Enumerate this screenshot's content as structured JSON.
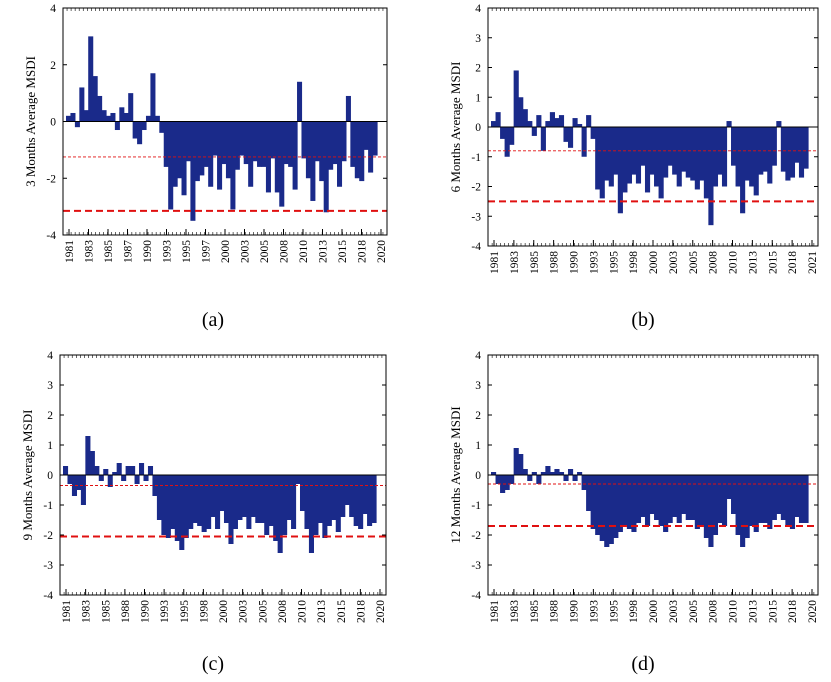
{
  "colors": {
    "bars": "#1a2a8a",
    "threshold": "#e01010",
    "axis": "#000000",
    "background": "#ffffff"
  },
  "chart_data": [
    {
      "type": "bar",
      "panel_label": "(a)",
      "ylabel": "3 Months Average MSDI",
      "ylim": [
        -4,
        4
      ],
      "yticks": [
        "4",
        "2",
        "0",
        "-2",
        "-4"
      ],
      "xlim": [
        1981,
        2021
      ],
      "xticks": [
        "1981",
        "1983",
        "1985",
        "1987",
        "1990",
        "1993",
        "1995",
        "1997",
        "2000",
        "2003",
        "2005",
        "2008",
        "2010",
        "2013",
        "2015",
        "2018",
        "2020"
      ],
      "threshold_lines": [
        {
          "value": -1.25,
          "style": "thin"
        },
        {
          "value": -3.15,
          "style": "thick"
        }
      ],
      "values": [
        0.2,
        0.3,
        -0.2,
        1.2,
        0.4,
        3.0,
        1.6,
        0.9,
        0.4,
        0.2,
        0.3,
        -0.3,
        0.5,
        0.3,
        1.0,
        -0.6,
        -0.8,
        -0.3,
        0.2,
        1.7,
        0.2,
        -0.4,
        -1.6,
        -3.1,
        -2.3,
        -2.0,
        -2.6,
        -1.4,
        -3.5,
        -2.1,
        -1.9,
        -1.6,
        -2.3,
        -1.2,
        -2.4,
        -1.5,
        -2.0,
        -3.1,
        -1.7,
        -1.2,
        -1.5,
        -2.3,
        -1.4,
        -1.6,
        -1.6,
        -2.5,
        -1.3,
        -2.5,
        -3.0,
        -1.5,
        -1.6,
        -2.4,
        1.4,
        -1.3,
        -2.0,
        -2.8,
        -1.4,
        -2.1,
        -3.2,
        -1.7,
        -1.5,
        -2.3,
        -1.4,
        0.9,
        -1.6,
        -2.0,
        -2.1,
        -1.0,
        -1.8,
        -1.2
      ]
    },
    {
      "type": "bar",
      "panel_label": "(b)",
      "ylabel": "6 Months Average MSDI",
      "ylim": [
        -4,
        4
      ],
      "yticks": [
        "4",
        "3",
        "2",
        "1",
        "0",
        "-1",
        "-2",
        "-3",
        "-4"
      ],
      "xlim": [
        1981,
        2021
      ],
      "xticks": [
        "1981",
        "1983",
        "1985",
        "1988",
        "1990",
        "1993",
        "1995",
        "1998",
        "2000",
        "2003",
        "2005",
        "2008",
        "2010",
        "2013",
        "2015",
        "2018",
        "2021"
      ],
      "threshold_lines": [
        {
          "value": -0.8,
          "style": "thin"
        },
        {
          "value": -2.5,
          "style": "thick"
        }
      ],
      "values": [
        0.2,
        0.5,
        -0.4,
        -1.0,
        -0.6,
        1.9,
        1.0,
        0.6,
        0.2,
        -0.3,
        0.4,
        -0.8,
        0.2,
        0.5,
        0.3,
        0.4,
        -0.5,
        -0.7,
        0.3,
        0.1,
        -1.0,
        0.4,
        -0.4,
        -2.1,
        -2.4,
        -1.8,
        -2.0,
        -1.6,
        -2.9,
        -2.2,
        -1.9,
        -1.6,
        -1.9,
        -1.3,
        -2.2,
        -1.6,
        -2.0,
        -2.4,
        -1.7,
        -1.3,
        -1.6,
        -2.0,
        -1.5,
        -1.7,
        -1.8,
        -2.1,
        -1.8,
        -2.4,
        -3.3,
        -2.0,
        -1.6,
        -2.0,
        0.2,
        -1.3,
        -2.0,
        -2.9,
        -1.8,
        -2.0,
        -2.3,
        -1.6,
        -1.5,
        -1.9,
        -1.3,
        0.2,
        -1.5,
        -1.8,
        -1.7,
        -1.2,
        -1.7,
        -1.4
      ]
    },
    {
      "type": "bar",
      "panel_label": "(c)",
      "ylabel": "9 Months Average MSDI",
      "ylim": [
        -4,
        4
      ],
      "yticks": [
        "4",
        "3",
        "2",
        "1",
        "0",
        "-1",
        "-2",
        "-3",
        "-4"
      ],
      "xlim": [
        1981,
        2021
      ],
      "xticks": [
        "1981",
        "1983",
        "1985",
        "1988",
        "1990",
        "1993",
        "1995",
        "1998",
        "2000",
        "2003",
        "2005",
        "2008",
        "2010",
        "2013",
        "2015",
        "2018",
        "2020"
      ],
      "threshold_lines": [
        {
          "value": -0.35,
          "style": "thin"
        },
        {
          "value": -2.05,
          "style": "thick"
        }
      ],
      "values": [
        0.3,
        -0.3,
        -0.7,
        -0.5,
        -1.0,
        1.3,
        0.8,
        0.3,
        -0.2,
        0.2,
        -0.4,
        0.1,
        0.4,
        -0.2,
        0.3,
        0.3,
        -0.3,
        0.4,
        -0.2,
        0.3,
        -0.7,
        -1.5,
        -2.0,
        -2.1,
        -1.8,
        -2.2,
        -2.5,
        -2.1,
        -1.8,
        -1.6,
        -1.7,
        -1.9,
        -1.8,
        -1.4,
        -1.8,
        -1.2,
        -1.6,
        -2.3,
        -1.8,
        -1.5,
        -1.4,
        -1.8,
        -1.4,
        -1.6,
        -1.6,
        -2.0,
        -1.7,
        -2.2,
        -2.6,
        -2.0,
        -1.5,
        -1.8,
        -0.3,
        -1.2,
        -1.8,
        -2.6,
        -2.0,
        -1.6,
        -2.1,
        -1.7,
        -1.5,
        -1.9,
        -1.4,
        -1.0,
        -1.4,
        -1.7,
        -1.8,
        -1.3,
        -1.7,
        -1.6
      ]
    },
    {
      "type": "bar",
      "panel_label": "(d)",
      "ylabel": "12 Months Average MSDI",
      "ylim": [
        -4,
        4
      ],
      "yticks": [
        "4",
        "3",
        "2",
        "1",
        "0",
        "-1",
        "-2",
        "-3",
        "-4"
      ],
      "xlim": [
        1981,
        2021
      ],
      "xticks": [
        "1981",
        "1983",
        "1985",
        "1988",
        "1990",
        "1993",
        "1995",
        "1998",
        "2000",
        "2003",
        "2005",
        "2008",
        "2010",
        "2013",
        "2015",
        "2018",
        "2020"
      ],
      "threshold_lines": [
        {
          "value": -0.3,
          "style": "thin"
        },
        {
          "value": -1.7,
          "style": "thick"
        }
      ],
      "values": [
        0.1,
        -0.3,
        -0.6,
        -0.5,
        -0.3,
        0.9,
        0.7,
        0.2,
        -0.2,
        0.1,
        -0.3,
        0.1,
        0.3,
        0.1,
        0.2,
        0.1,
        -0.2,
        0.2,
        -0.2,
        0.1,
        -0.5,
        -1.2,
        -1.8,
        -2.0,
        -2.2,
        -2.4,
        -2.3,
        -2.1,
        -1.9,
        -1.7,
        -1.8,
        -1.9,
        -1.6,
        -1.4,
        -1.7,
        -1.3,
        -1.5,
        -1.7,
        -1.9,
        -1.6,
        -1.4,
        -1.6,
        -1.3,
        -1.5,
        -1.5,
        -1.8,
        -1.7,
        -2.1,
        -2.4,
        -2.0,
        -1.6,
        -1.7,
        -0.8,
        -1.3,
        -2.0,
        -2.4,
        -2.1,
        -1.7,
        -1.9,
        -1.6,
        -1.6,
        -1.8,
        -1.5,
        -1.3,
        -1.5,
        -1.7,
        -1.8,
        -1.4,
        -1.6,
        -1.6
      ]
    }
  ]
}
